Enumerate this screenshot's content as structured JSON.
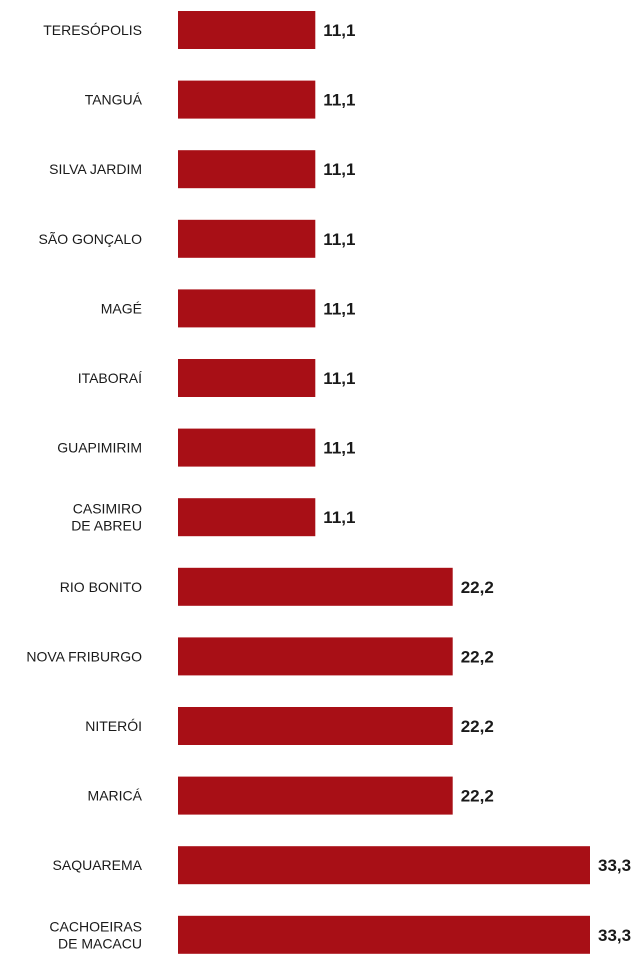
{
  "chart_data": {
    "type": "bar",
    "orientation": "horizontal",
    "categories": [
      "TERESÓPOLIS",
      "TANGUÁ",
      "SILVA JARDIM",
      "SÃO GONÇALO",
      "MAGÉ",
      "ITABORAÍ",
      "GUAPIMIRIM",
      "CASIMIRO DE ABREU",
      "RIO BONITO",
      "NOVA FRIBURGO",
      "NITERÓI",
      "MARICÁ",
      "SAQUAREMA",
      "CACHOEIRAS DE MACACU"
    ],
    "category_lines": [
      [
        "TERESÓPOLIS"
      ],
      [
        "TANGUÁ"
      ],
      [
        "SILVA JARDIM"
      ],
      [
        "SÃO GONÇALO"
      ],
      [
        "MAGÉ"
      ],
      [
        "ITABORAÍ"
      ],
      [
        "GUAPIMIRIM"
      ],
      [
        "CASIMIRO",
        "DE ABREU"
      ],
      [
        "RIO BONITO"
      ],
      [
        "NOVA FRIBURGO"
      ],
      [
        "NITERÓI"
      ],
      [
        "MARICÁ"
      ],
      [
        "SAQUAREMA"
      ],
      [
        "CACHOEIRAS",
        "DE MACACU"
      ]
    ],
    "values": [
      11.1,
      11.1,
      11.1,
      11.1,
      11.1,
      11.1,
      11.1,
      11.1,
      22.2,
      22.2,
      22.2,
      22.2,
      33.3,
      33.3
    ],
    "value_labels": [
      "11,1",
      "11,1",
      "11,1",
      "11,1",
      "11,1",
      "11,1",
      "11,1",
      "11,1",
      "22,2",
      "22,2",
      "22,2",
      "22,2",
      "33,3",
      "33,3"
    ],
    "xlim": [
      0,
      33.3
    ],
    "bar_color": "#a80f16",
    "grid": false,
    "axes_visible": false,
    "title": "",
    "xlabel": "",
    "ylabel": ""
  }
}
